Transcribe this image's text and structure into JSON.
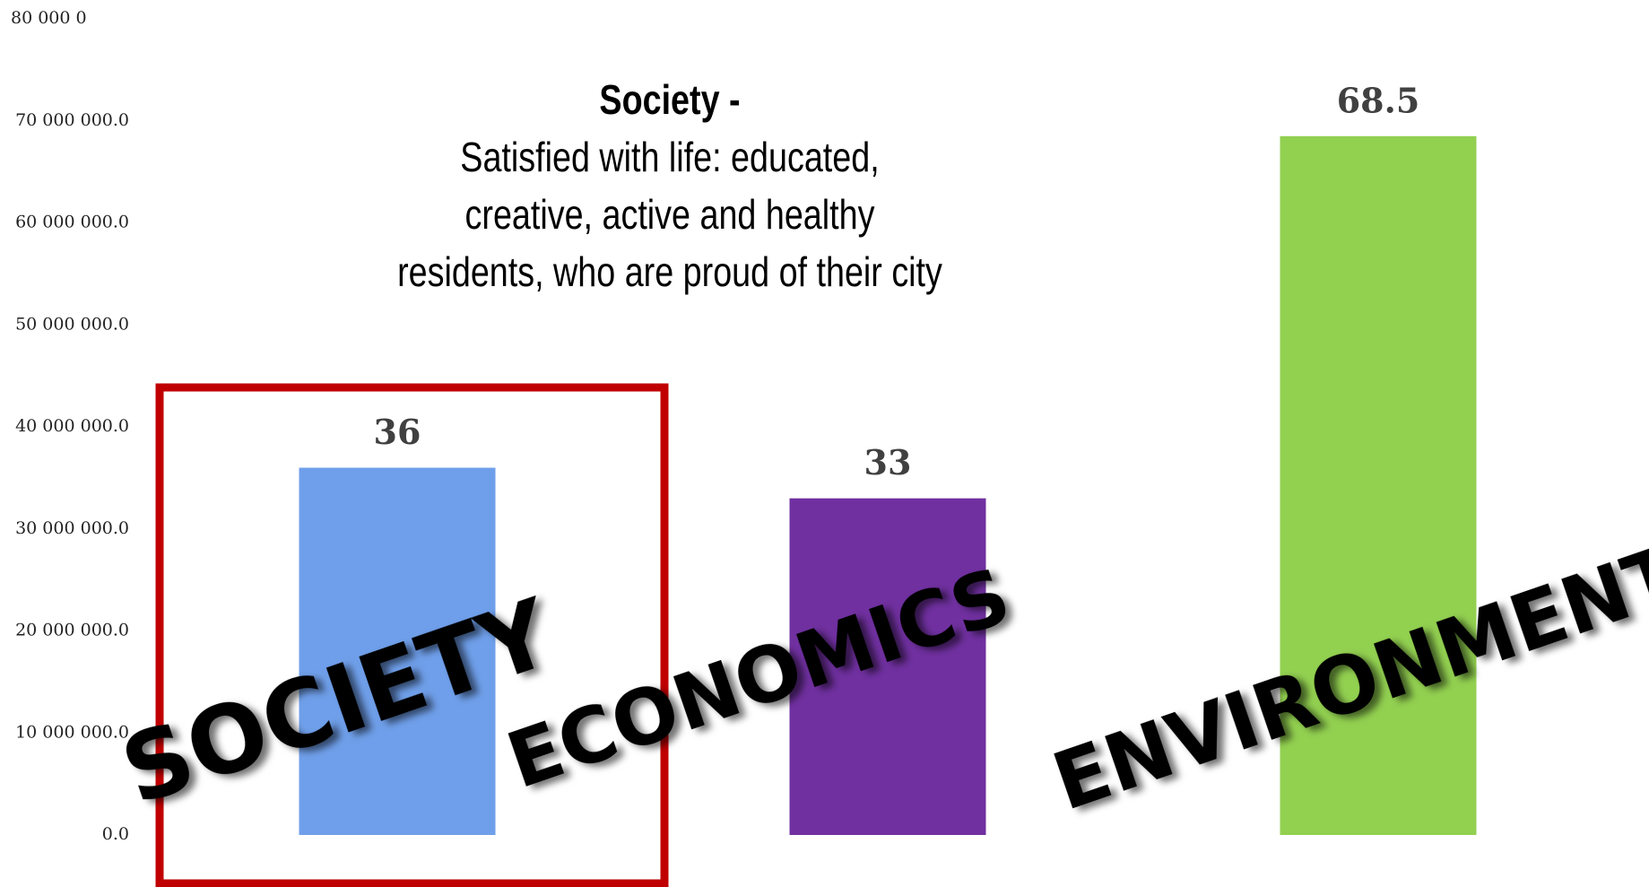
{
  "chart_data": {
    "type": "bar",
    "title": "Society -",
    "subtitle": [
      "Satisfied with life: educated,",
      "creative, active and healthy",
      "residents, who are proud of  their city"
    ],
    "categories": [
      "SOCIETY",
      "ECONOMICS",
      "ENVIRONMENT"
    ],
    "values": [
      36000000,
      33000000,
      68500000
    ],
    "value_labels": [
      "36",
      "33",
      "68.5"
    ],
    "colors": [
      "#6f9fea",
      "#7030a0",
      "#92d050"
    ],
    "ylim": [
      0,
      80000000
    ],
    "yticks": [
      {
        "value": 0,
        "label": "0.0"
      },
      {
        "value": 10000000,
        "label": "10 000 000.0"
      },
      {
        "value": 20000000,
        "label": "20 000 000.0"
      },
      {
        "value": 30000000,
        "label": "30 000 000.0"
      },
      {
        "value": 40000000,
        "label": "40 000 000.0"
      },
      {
        "value": 50000000,
        "label": "50 000 000.0"
      },
      {
        "value": 60000000,
        "label": "60 000 000.0"
      },
      {
        "value": 70000000,
        "label": "70 000 000.0"
      },
      {
        "value": 80000000,
        "label": "80 000 0"
      }
    ],
    "grid": false
  }
}
